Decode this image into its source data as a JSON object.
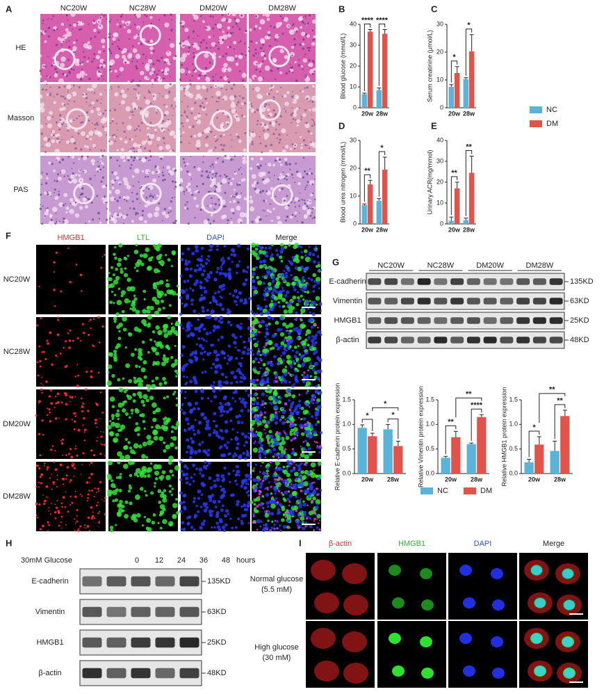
{
  "panel_letters": [
    "A",
    "B",
    "C",
    "D",
    "E",
    "F",
    "G",
    "H",
    "I"
  ],
  "histology": {
    "columns": [
      "NC20W",
      "NC28W",
      "DM20W",
      "DM28W"
    ],
    "rows": [
      "HE",
      "Masson",
      "PAS"
    ]
  },
  "fluorescence_kidney": {
    "columns": [
      "HMGB1",
      "LTL",
      "DAPI",
      "Merge"
    ],
    "rows": [
      "NC20W",
      "NC28W",
      "DM20W",
      "DM28W"
    ]
  },
  "blot_g": {
    "groups": [
      "NC20W",
      "NC28W",
      "DM20W",
      "DM28W"
    ],
    "rows": [
      {
        "name": "E-cadherin",
        "size": "135KD"
      },
      {
        "name": "Vimentin",
        "size": "63KD"
      },
      {
        "name": "HMGB1",
        "size": "25KD"
      },
      {
        "name": "β-actin",
        "size": "48KD"
      }
    ]
  },
  "blot_h": {
    "treatment": "30mM Glucose",
    "lanes": [
      "0",
      "12",
      "24",
      "36",
      "48"
    ],
    "unit": "hours",
    "rows": [
      {
        "name": "E-cadherin",
        "size": "135KD"
      },
      {
        "name": "Vimentin",
        "size": "63KD"
      },
      {
        "name": "HMGB1",
        "size": "25KD"
      },
      {
        "name": "β-actin",
        "size": "48KD"
      }
    ]
  },
  "fluorescence_cells": {
    "columns": [
      "β-actin",
      "HMGB1",
      "DAPI",
      "Merge"
    ],
    "rows": [
      [
        "Normal glucose",
        "(5.5 mM)"
      ],
      [
        "High glucose",
        "(30 mM)"
      ]
    ]
  },
  "chart_data": [
    {
      "type": "bar",
      "y_label": "Blood glucose (mmol/L)",
      "categories": [
        "20w",
        "28w"
      ],
      "ylim": [
        0,
        40
      ],
      "yticks": [
        0,
        10,
        20,
        30,
        40
      ],
      "series": [
        {
          "name": "NC",
          "color": "#5bb3d8",
          "values": [
            6.5,
            8.5
          ],
          "errors": [
            0.5,
            1
          ]
        },
        {
          "name": "DM",
          "color": "#e0544b",
          "values": [
            36.5,
            35.5
          ],
          "errors": [
            1,
            2
          ]
        }
      ],
      "significance": [
        "****",
        "****"
      ]
    },
    {
      "type": "bar",
      "y_label": "Serum creatinine (μmol/L)",
      "categories": [
        "20w",
        "28w"
      ],
      "ylim": [
        0,
        30
      ],
      "yticks": [
        0,
        10,
        20,
        30
      ],
      "series": [
        {
          "name": "NC",
          "color": "#5bb3d8",
          "values": [
            7.5,
            10.3
          ],
          "errors": [
            0.8,
            0.5
          ]
        },
        {
          "name": "DM",
          "color": "#e0544b",
          "values": [
            12.5,
            20.3
          ],
          "errors": [
            2.3,
            6
          ]
        }
      ],
      "significance": [
        "*",
        "*"
      ]
    },
    {
      "type": "bar",
      "y_label": "Blood urea nitrogen (mmol/L)",
      "categories": [
        "20w",
        "28w"
      ],
      "ylim": [
        0,
        30
      ],
      "yticks": [
        0,
        10,
        20,
        30
      ],
      "series": [
        {
          "name": "NC",
          "color": "#5bb3d8",
          "values": [
            6.8,
            8.3
          ],
          "errors": [
            0.4,
            0.8
          ]
        },
        {
          "name": "DM",
          "color": "#e0544b",
          "values": [
            14.2,
            19.5
          ],
          "errors": [
            1.5,
            4.5
          ]
        }
      ],
      "significance": [
        "**",
        "*"
      ]
    },
    {
      "type": "bar",
      "y_label": "Urinary ACR(mg/mmol)",
      "categories": [
        "20w",
        "28w"
      ],
      "ylim": [
        0,
        40
      ],
      "yticks": [
        0,
        10,
        20,
        30,
        40
      ],
      "series": [
        {
          "name": "NC",
          "color": "#5bb3d8",
          "values": [
            1.5,
            1.8
          ],
          "errors": [
            1.8,
            1
          ]
        },
        {
          "name": "DM",
          "color": "#e0544b",
          "values": [
            17,
            24.5
          ],
          "errors": [
            3,
            8
          ]
        }
      ],
      "significance": [
        "**",
        "**"
      ]
    },
    {
      "type": "bar",
      "y_label": "Relative E-cadherin protein expression",
      "categories": [
        "20w",
        "28w"
      ],
      "ylim": [
        0,
        1.5
      ],
      "yticks": [
        {
          "value": 0,
          "label": "0.0"
        },
        0.5,
        {
          "value": 1,
          "label": "1.0"
        },
        1.5
      ],
      "series": [
        {
          "name": "NC",
          "color": "#5bb3d8",
          "values": [
            0.93,
            0.9
          ],
          "errors": [
            0.06,
            0.1
          ]
        },
        {
          "name": "DM",
          "color": "#e0544b",
          "values": [
            0.76,
            0.56
          ],
          "errors": [
            0.06,
            0.1
          ]
        }
      ],
      "significance": [
        "*",
        "*"
      ],
      "cross_significance": "*"
    },
    {
      "type": "bar",
      "y_label": "Relative Vimentin protein expression",
      "categories": [
        "20w",
        "28w"
      ],
      "ylim": [
        0,
        1.5
      ],
      "yticks": [
        {
          "value": 0,
          "label": "0.0"
        },
        0.5,
        {
          "value": 1,
          "label": "1.0"
        },
        1.5
      ],
      "series": [
        {
          "name": "NC",
          "color": "#5bb3d8",
          "values": [
            0.32,
            0.6
          ],
          "errors": [
            0.03,
            0.02
          ]
        },
        {
          "name": "DM",
          "color": "#e0544b",
          "values": [
            0.74,
            1.15
          ],
          "errors": [
            0.12,
            0.05
          ]
        }
      ],
      "significance": [
        "**",
        "****"
      ],
      "cross_significance": "**"
    },
    {
      "type": "bar",
      "y_label": "Relative HMGB1 protein expression",
      "categories": [
        "20w",
        "28w"
      ],
      "ylim": [
        0,
        1.5
      ],
      "yticks": [
        {
          "value": 0,
          "label": "0.0"
        },
        0.5,
        {
          "value": 1,
          "label": "1.0"
        },
        1.5
      ],
      "series": [
        {
          "name": "NC",
          "color": "#5bb3d8",
          "values": [
            0.23,
            0.46
          ],
          "errors": [
            0.06,
            0.2
          ]
        },
        {
          "name": "DM",
          "color": "#e0544b",
          "values": [
            0.59,
            1.17
          ],
          "errors": [
            0.16,
            0.12
          ]
        }
      ],
      "significance": [
        "*",
        "**"
      ],
      "cross_significance": "**"
    }
  ]
}
